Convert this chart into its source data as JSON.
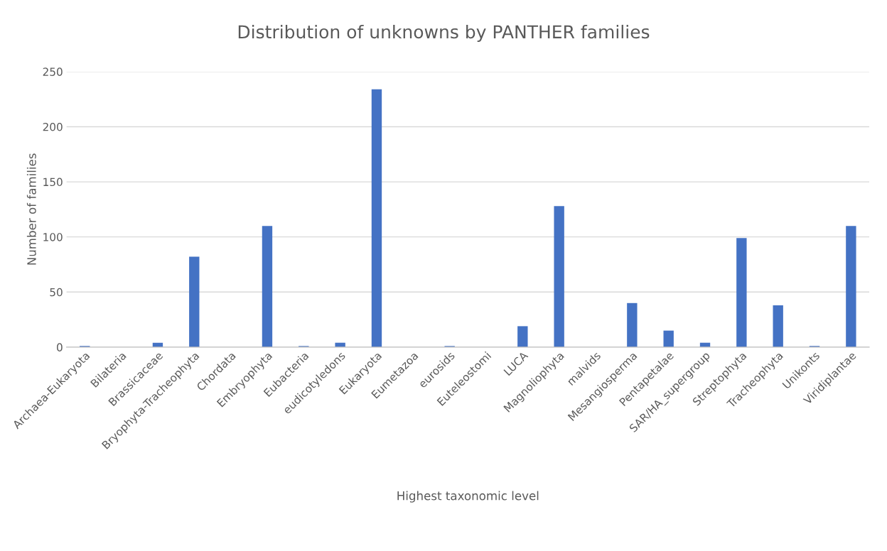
{
  "chart_data": {
    "type": "bar",
    "title": "Distribution of unknowns by PANTHER families",
    "xlabel": "Highest taxonomic level",
    "ylabel": "Number of families",
    "categories": [
      "Archaea-Eukaryota",
      "Bilateria",
      "Brassicaceae",
      "Bryophyta-Tracheophyta",
      "Chordata",
      "Embryophyta",
      "Eubacteria",
      "eudicotyledons",
      "Eukaryota",
      "Eumetazoa",
      "eurosids",
      "Euteleostomi",
      "LUCA",
      "Magnoliophyta",
      "malvids",
      "Mesangiosperma",
      "Pentapetalae",
      "SAR/HA_supergroup",
      "Streptophyta",
      "Tracheophyta",
      "Unikonts",
      "Viridiplantae"
    ],
    "values": [
      1,
      null,
      4,
      82,
      null,
      110,
      1,
      4,
      234,
      null,
      1,
      null,
      19,
      128,
      null,
      40,
      15,
      4,
      99,
      38,
      1,
      110
    ],
    "color": "#4472c4",
    "ylim": [
      0,
      250
    ],
    "yticks": [
      0,
      50,
      100,
      150,
      200,
      250
    ],
    "grid": "y"
  }
}
